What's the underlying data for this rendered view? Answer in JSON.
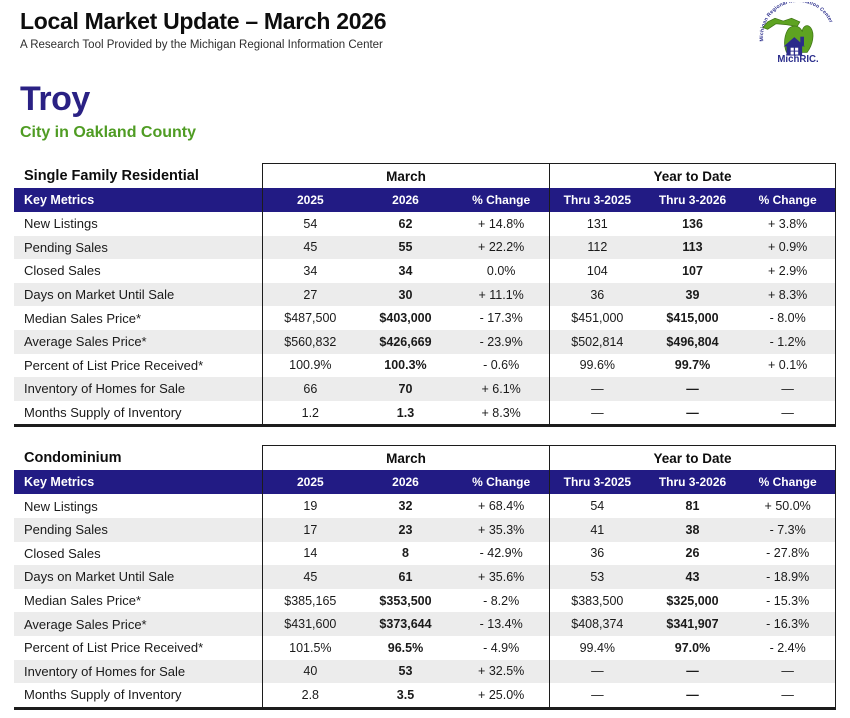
{
  "header": {
    "title": "Local Market Update – March 2026",
    "subtitle": "A Research Tool Provided by the Michigan Regional Information Center",
    "logo": {
      "arc_text": "Michigan Regional Information Center",
      "label": "MichRIC.",
      "green": "#5ea321",
      "blue": "#2b2e8c"
    }
  },
  "location": {
    "city": "Troy",
    "region": "City in Oakland County"
  },
  "colors": {
    "navy": "#221b84",
    "stripe": "#ececec",
    "border": "#1c1c1c",
    "city_blue": "#2a2184",
    "county_green": "#4f9c23"
  },
  "tables": [
    {
      "section_title": "Single Family Residential",
      "march_label": "March",
      "ytd_label": "Year to Date",
      "key_metrics_label": "Key Metrics",
      "columns": [
        "2025",
        "2026",
        "% Change",
        "Thru 3-2025",
        "Thru 3-2026",
        "% Change"
      ],
      "rows": [
        {
          "metric": "New Listings",
          "values": [
            "54",
            "62",
            "+ 14.8%",
            "131",
            "136",
            "+ 3.8%"
          ]
        },
        {
          "metric": "Pending Sales",
          "values": [
            "45",
            "55",
            "+ 22.2%",
            "112",
            "113",
            "+ 0.9%"
          ]
        },
        {
          "metric": "Closed Sales",
          "values": [
            "34",
            "34",
            "0.0%",
            "104",
            "107",
            "+ 2.9%"
          ]
        },
        {
          "metric": "Days on Market Until Sale",
          "values": [
            "27",
            "30",
            "+ 11.1%",
            "36",
            "39",
            "+ 8.3%"
          ]
        },
        {
          "metric": "Median Sales Price*",
          "values": [
            "$487,500",
            "$403,000",
            "- 17.3%",
            "$451,000",
            "$415,000",
            "- 8.0%"
          ]
        },
        {
          "metric": "Average Sales Price*",
          "values": [
            "$560,832",
            "$426,669",
            "- 23.9%",
            "$502,814",
            "$496,804",
            "- 1.2%"
          ]
        },
        {
          "metric": "Percent of List Price Received*",
          "values": [
            "100.9%",
            "100.3%",
            "- 0.6%",
            "99.6%",
            "99.7%",
            "+ 0.1%"
          ]
        },
        {
          "metric": "Inventory of Homes for Sale",
          "values": [
            "66",
            "70",
            "+ 6.1%",
            "—",
            "—",
            "—"
          ]
        },
        {
          "metric": "Months Supply of Inventory",
          "values": [
            "1.2",
            "1.3",
            "+ 8.3%",
            "—",
            "—",
            "—"
          ]
        }
      ]
    },
    {
      "section_title": "Condominium",
      "march_label": "March",
      "ytd_label": "Year to Date",
      "key_metrics_label": "Key Metrics",
      "columns": [
        "2025",
        "2026",
        "% Change",
        "Thru 3-2025",
        "Thru 3-2026",
        "% Change"
      ],
      "rows": [
        {
          "metric": "New Listings",
          "values": [
            "19",
            "32",
            "+ 68.4%",
            "54",
            "81",
            "+ 50.0%"
          ]
        },
        {
          "metric": "Pending Sales",
          "values": [
            "17",
            "23",
            "+ 35.3%",
            "41",
            "38",
            "- 7.3%"
          ]
        },
        {
          "metric": "Closed Sales",
          "values": [
            "14",
            "8",
            "- 42.9%",
            "36",
            "26",
            "- 27.8%"
          ]
        },
        {
          "metric": "Days on Market Until Sale",
          "values": [
            "45",
            "61",
            "+ 35.6%",
            "53",
            "43",
            "- 18.9%"
          ]
        },
        {
          "metric": "Median Sales Price*",
          "values": [
            "$385,165",
            "$353,500",
            "- 8.2%",
            "$383,500",
            "$325,000",
            "- 15.3%"
          ]
        },
        {
          "metric": "Average Sales Price*",
          "values": [
            "$431,600",
            "$373,644",
            "- 13.4%",
            "$408,374",
            "$341,907",
            "- 16.3%"
          ]
        },
        {
          "metric": "Percent of List Price Received*",
          "values": [
            "101.5%",
            "96.5%",
            "- 4.9%",
            "99.4%",
            "97.0%",
            "- 2.4%"
          ]
        },
        {
          "metric": "Inventory of Homes for Sale",
          "values": [
            "40",
            "53",
            "+ 32.5%",
            "—",
            "—",
            "—"
          ]
        },
        {
          "metric": "Months Supply of Inventory",
          "values": [
            "2.8",
            "3.5",
            "+ 25.0%",
            "—",
            "—",
            "—"
          ]
        }
      ]
    }
  ]
}
